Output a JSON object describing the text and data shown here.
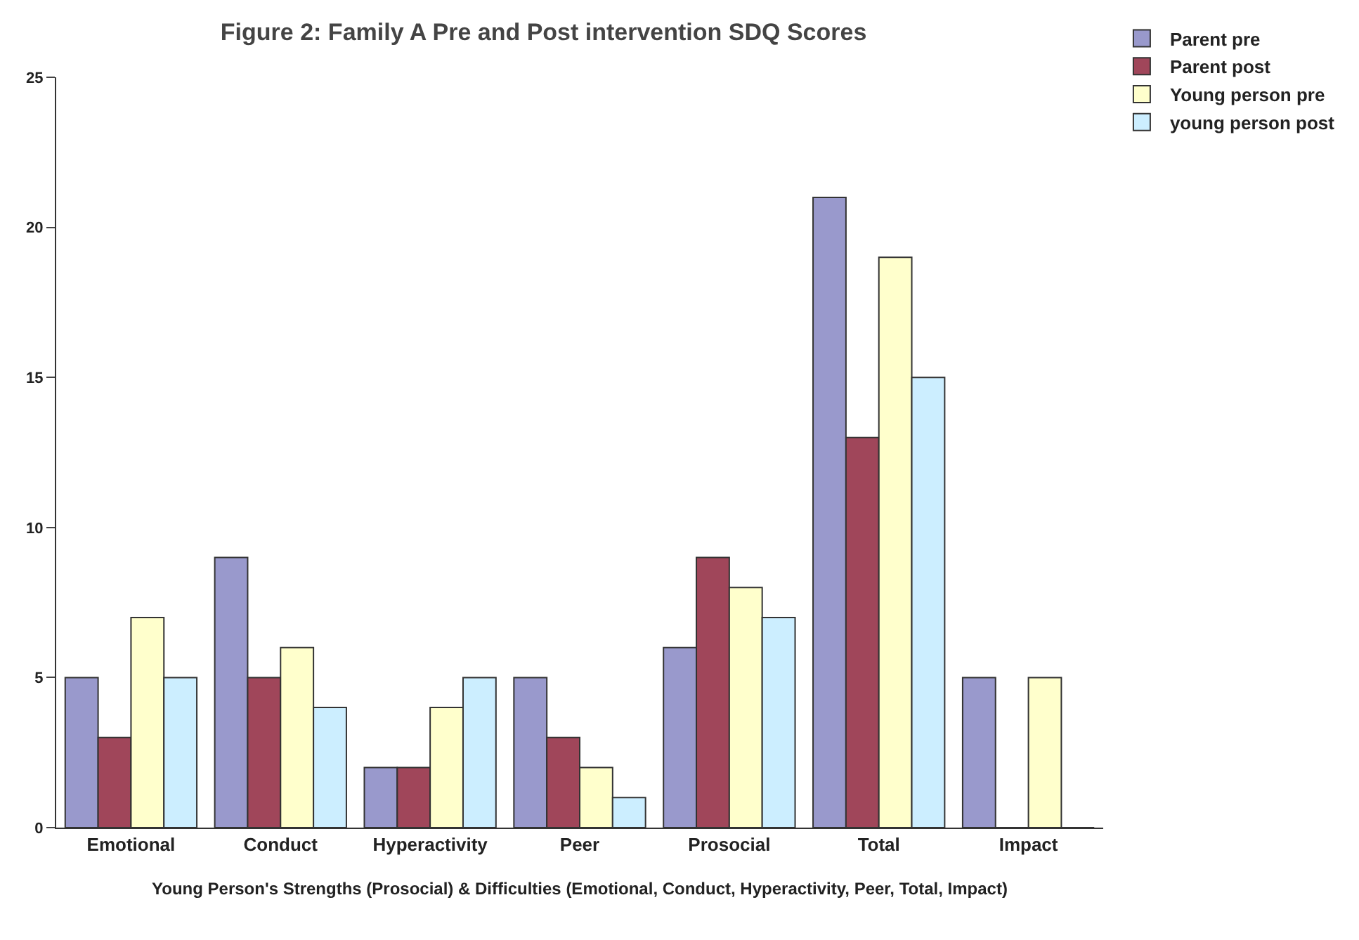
{
  "chart_data": {
    "type": "bar",
    "title": "Figure 2: Family A Pre and Post intervention SDQ Scores",
    "xlabel": "Young Person's Strengths (Prosocial) & Difficulties (Emotional, Conduct, Hyperactivity, Peer, Total, Impact)",
    "categories": [
      "Emotional",
      "Conduct",
      "Hyperactivity",
      "Peer",
      "Prosocial",
      "Total",
      "Impact"
    ],
    "series": [
      {
        "name": "Parent pre",
        "color": "#9999cc",
        "values": [
          5,
          9,
          2,
          5,
          6,
          21,
          5
        ]
      },
      {
        "name": "Parent post",
        "color": "#a0465a",
        "values": [
          3,
          5,
          2,
          3,
          9,
          13,
          0
        ]
      },
      {
        "name": "Young person pre",
        "color": "#ffffcc",
        "values": [
          7,
          6,
          4,
          2,
          8,
          19,
          5
        ]
      },
      {
        "name": "young person post",
        "color": "#cceeff",
        "values": [
          5,
          4,
          5,
          1,
          7,
          15,
          0
        ]
      }
    ],
    "ylim": [
      0,
      25
    ],
    "yticks": [
      0,
      5,
      10,
      15,
      20,
      25
    ],
    "grid": false,
    "legend": "top right"
  }
}
